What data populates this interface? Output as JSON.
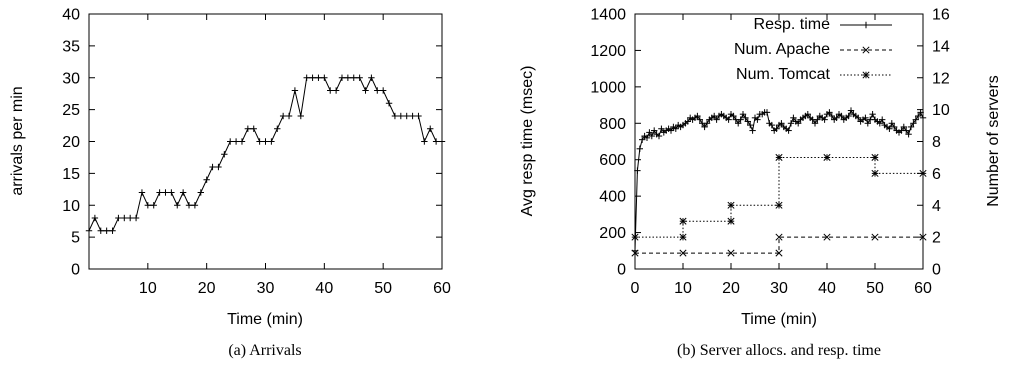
{
  "chart_data": [
    {
      "type": "line",
      "caption": "(a) Arrivals",
      "title": "",
      "xlabel": "Time (min)",
      "ylabel": "arrivals per min",
      "xlim": [
        0,
        60
      ],
      "ylim": [
        0,
        40
      ],
      "xticks": [
        10,
        20,
        30,
        40,
        50,
        60
      ],
      "yticks": [
        0,
        5,
        10,
        15,
        20,
        25,
        30,
        35,
        40
      ],
      "grid": false,
      "series": [
        {
          "marker": "plus",
          "x": [
            0,
            1,
            2,
            3,
            4,
            5,
            6,
            7,
            8,
            9,
            10,
            11,
            12,
            13,
            14,
            15,
            16,
            17,
            18,
            19,
            20,
            21,
            22,
            23,
            24,
            25,
            26,
            27,
            28,
            29,
            30,
            31,
            32,
            33,
            34,
            35,
            36,
            37,
            38,
            39,
            40,
            41,
            42,
            43,
            44,
            45,
            46,
            47,
            48,
            49,
            50,
            51,
            52,
            53,
            54,
            55,
            56,
            57,
            58,
            59,
            60
          ],
          "values": [
            6,
            8,
            6,
            6,
            6,
            8,
            8,
            8,
            8,
            12,
            10,
            10,
            12,
            12,
            12,
            10,
            12,
            10,
            10,
            12,
            14,
            16,
            16,
            18,
            20,
            20,
            20,
            22,
            22,
            20,
            20,
            20,
            22,
            24,
            24,
            28,
            24,
            30,
            30,
            30,
            30,
            28,
            28,
            30,
            30,
            30,
            30,
            28,
            30,
            28,
            28,
            26,
            24,
            24,
            24,
            24,
            24,
            20,
            22,
            20,
            20
          ]
        }
      ]
    },
    {
      "type": "line",
      "caption": "(b) Server allocs. and resp. time",
      "title": "",
      "xlabel": "Time (min)",
      "ylabel": "Avg resp time (msec)",
      "y2label": "Number of servers",
      "xlim": [
        0,
        60
      ],
      "ylim": [
        0,
        1400
      ],
      "y2lim": [
        0,
        16
      ],
      "xticks": [
        0,
        10,
        20,
        30,
        40,
        50,
        60
      ],
      "yticks": [
        0,
        200,
        400,
        600,
        800,
        1000,
        1200,
        1400
      ],
      "y2ticks": [
        0,
        2,
        4,
        6,
        8,
        10,
        12,
        14,
        16
      ],
      "grid": false,
      "legend": "top-right",
      "series": [
        {
          "name": "Resp. time",
          "axis": "left",
          "style": "solid",
          "marker": "plus",
          "x": [
            0,
            0.5,
            1,
            1.5,
            2,
            2.5,
            3,
            3.5,
            4,
            4.5,
            5,
            5.5,
            6,
            6.5,
            7,
            7.5,
            8,
            8.5,
            9,
            9.5,
            10,
            10.5,
            11,
            11.5,
            12,
            12.5,
            13,
            13.5,
            14,
            14.5,
            15,
            15.5,
            16,
            16.5,
            17,
            17.5,
            18,
            18.5,
            19,
            19.5,
            20,
            20.5,
            21,
            21.5,
            22,
            22.5,
            23,
            23.5,
            24,
            24.5,
            25,
            25.5,
            26,
            26.5,
            27,
            27.5,
            28,
            28.5,
            29,
            29.5,
            30,
            30.5,
            31,
            31.5,
            32,
            32.5,
            33,
            33.5,
            34,
            34.5,
            35,
            35.5,
            36,
            36.5,
            37,
            37.5,
            38,
            38.5,
            39,
            39.5,
            40,
            40.5,
            41,
            41.5,
            42,
            42.5,
            43,
            43.5,
            44,
            44.5,
            45,
            45.5,
            46,
            46.5,
            47,
            47.5,
            48,
            48.5,
            49,
            49.5,
            50,
            50.5,
            51,
            51.5,
            52,
            52.5,
            53,
            53.5,
            54,
            54.5,
            55,
            55.5,
            56,
            56.5,
            57,
            57.5,
            58,
            58.5,
            59,
            59.5,
            60
          ],
          "values": [
            100,
            540,
            660,
            710,
            730,
            720,
            750,
            730,
            760,
            740,
            730,
            770,
            750,
            760,
            770,
            760,
            780,
            770,
            790,
            780,
            790,
            800,
            810,
            830,
            820,
            830,
            840,
            820,
            800,
            780,
            800,
            820,
            830,
            840,
            820,
            840,
            850,
            840,
            830,
            820,
            850,
            840,
            820,
            800,
            820,
            850,
            830,
            810,
            790,
            760,
            830,
            820,
            850,
            850,
            860,
            860,
            800,
            790,
            760,
            770,
            790,
            800,
            780,
            770,
            760,
            800,
            830,
            810,
            800,
            820,
            830,
            840,
            850,
            830,
            820,
            800,
            820,
            840,
            830,
            820,
            850,
            860,
            840,
            820,
            830,
            850,
            840,
            820,
            830,
            840,
            870,
            850,
            840,
            830,
            810,
            820,
            830,
            800,
            820,
            850,
            820,
            810,
            800,
            820,
            790,
            780,
            770,
            800,
            780,
            760,
            750,
            760,
            780,
            760,
            740,
            780,
            800,
            820,
            840,
            860,
            830
          ]
        },
        {
          "name": "Num. Apache",
          "axis": "right",
          "style": "dashed",
          "marker": "x",
          "x": [
            0,
            10,
            20,
            30,
            30,
            40,
            50,
            60
          ],
          "values": [
            1,
            1,
            1,
            1,
            2,
            2,
            2,
            2
          ]
        },
        {
          "name": "Num. Tomcat",
          "axis": "right",
          "style": "dotted",
          "marker": "star",
          "x": [
            0,
            10,
            10,
            20,
            20,
            30,
            30,
            40,
            50,
            50,
            60
          ],
          "values": [
            2,
            2,
            3,
            3,
            4,
            4,
            7,
            7,
            7,
            6,
            6
          ]
        }
      ]
    }
  ]
}
